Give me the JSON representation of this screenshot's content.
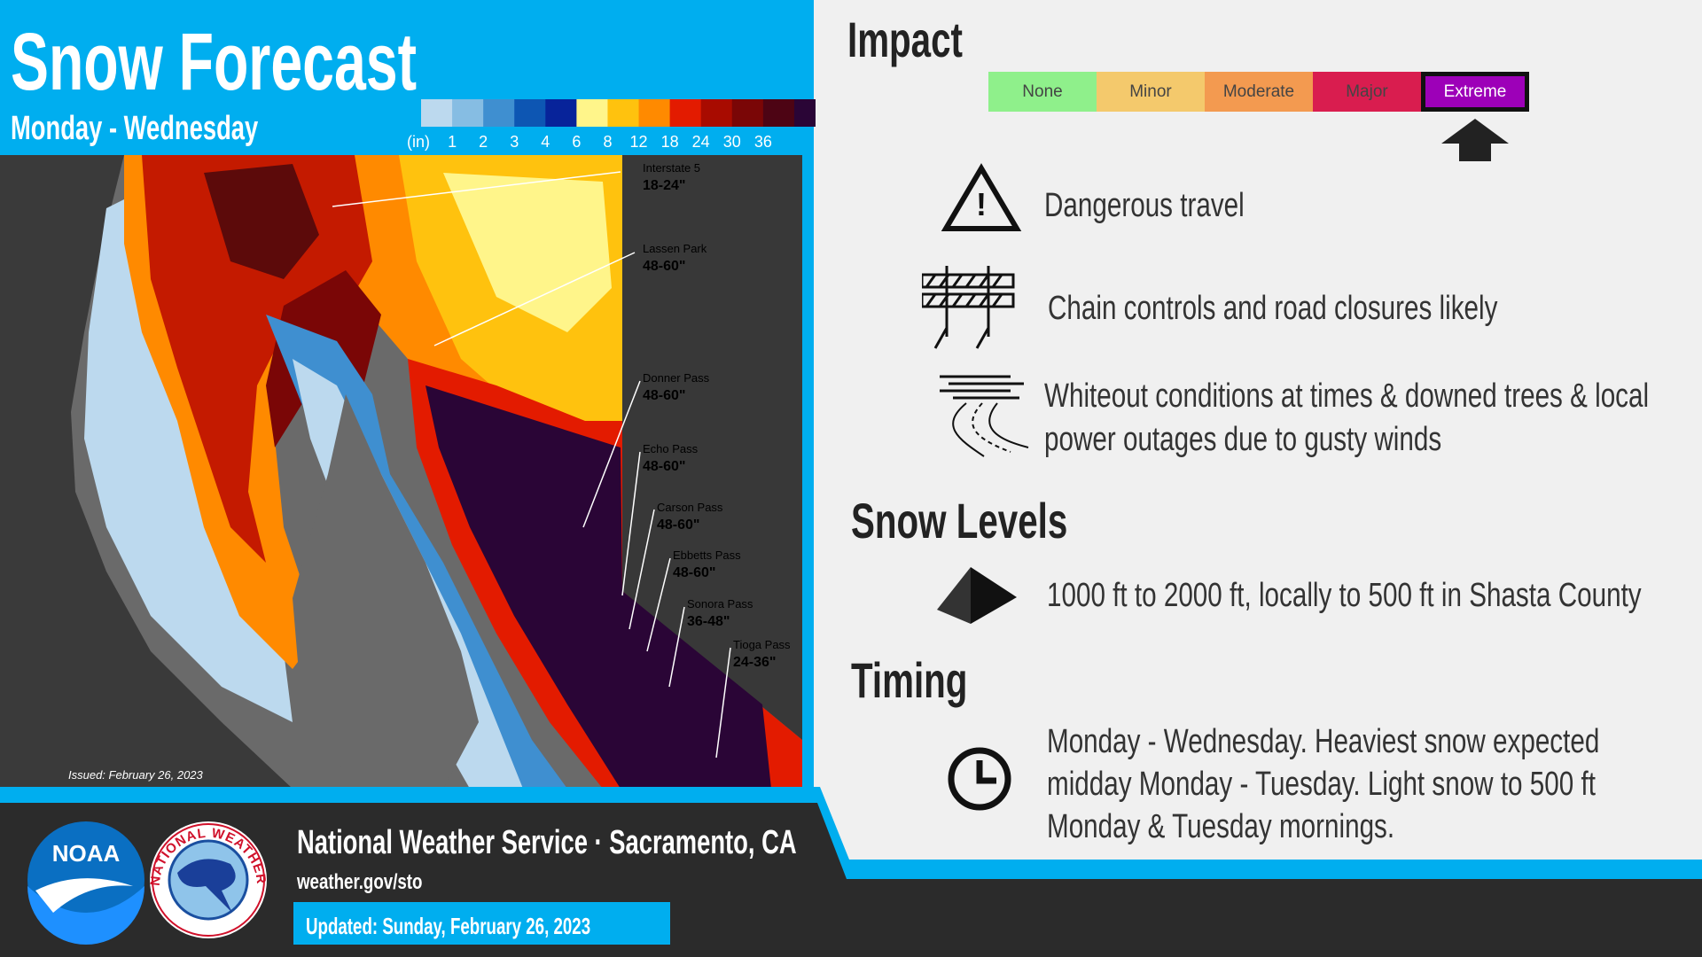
{
  "header": {
    "title": "Snow Forecast",
    "subtitle": "Monday - Wednesday"
  },
  "legend": {
    "unit": "(in)",
    "ticks": [
      "1",
      "2",
      "3",
      "4",
      "6",
      "8",
      "12",
      "18",
      "24",
      "30",
      "36"
    ],
    "colors": [
      "#bcd9ee",
      "#86bde3",
      "#3f8fd0",
      "#0d56b3",
      "#07239a",
      "#fff58a",
      "#ffc20e",
      "#ff8a00",
      "#e31b00",
      "#a80b00",
      "#7a0606",
      "#4d0414",
      "#2a0536"
    ]
  },
  "map": {
    "issued": "Issued: February 26, 2023",
    "locations": [
      {
        "name": "Interstate 5",
        "amount": "18-24\""
      },
      {
        "name": "Lassen Park",
        "amount": "48-60\""
      },
      {
        "name": "Donner Pass",
        "amount": "48-60\""
      },
      {
        "name": "Echo Pass",
        "amount": "48-60\""
      },
      {
        "name": "Carson Pass",
        "amount": "48-60\""
      },
      {
        "name": "Ebbetts Pass",
        "amount": "48-60\""
      },
      {
        "name": "Sonora Pass",
        "amount": "36-48\""
      },
      {
        "name": "Tioga Pass",
        "amount": "24-36\""
      }
    ]
  },
  "impact": {
    "title": "Impact",
    "levels": [
      {
        "label": "None",
        "color": "#8ff08b"
      },
      {
        "label": "Minor",
        "color": "#f4c96c"
      },
      {
        "label": "Moderate",
        "color": "#f39a50"
      },
      {
        "label": "Major",
        "color": "#d91d4f"
      },
      {
        "label": "Extreme",
        "color": "#9d00b8",
        "highlighted": true
      }
    ],
    "items": [
      {
        "lines": [
          "Dangerous travel"
        ]
      },
      {
        "lines": [
          "Chain controls and road closures likely"
        ]
      },
      {
        "lines": [
          "Whiteout conditions at times & downed trees & local",
          "power outages due to gusty winds"
        ]
      }
    ]
  },
  "snow_levels": {
    "title": "Snow Levels",
    "text": "1000 ft to 2000 ft, locally to 500 ft in Shasta County"
  },
  "timing": {
    "title": "Timing",
    "lines": [
      "Monday - Wednesday. Heaviest snow expected",
      "midday Monday - Tuesday. Light snow to 500 ft",
      "Monday & Tuesday mornings."
    ]
  },
  "footer": {
    "logos": [
      "NOAA",
      "NATIONAL WEATHER SERVICE"
    ],
    "office": "National Weather Service · Sacramento, CA",
    "url": "weather.gov/sto",
    "updated": "Updated: Sunday, February 26, 2023"
  }
}
